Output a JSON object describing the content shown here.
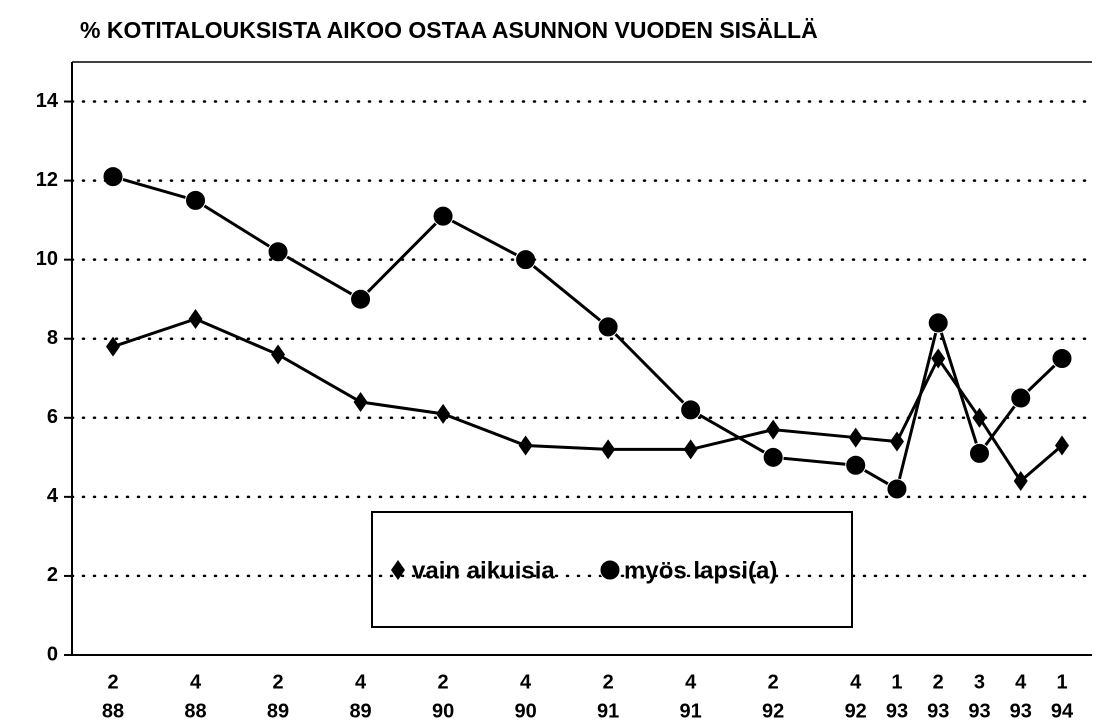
{
  "chart_data": {
    "type": "line",
    "title": "% KOTITALOUKSISTA AIKOO OSTAA ASUNNON VUODEN SISÄLLÄ",
    "categories": [
      [
        "2",
        "88"
      ],
      [
        "4",
        "88"
      ],
      [
        "2",
        "89"
      ],
      [
        "4",
        "89"
      ],
      [
        "2",
        "90"
      ],
      [
        "4",
        "90"
      ],
      [
        "2",
        "91"
      ],
      [
        "4",
        "91"
      ],
      [
        "2",
        "92"
      ],
      [
        "4",
        "92"
      ],
      [
        "1",
        "93"
      ],
      [
        "2",
        "93"
      ],
      [
        "3",
        "93"
      ],
      [
        "4",
        "93"
      ],
      [
        "1",
        "94"
      ]
    ],
    "series": [
      {
        "name": "vain aikuisia",
        "color": "#000000",
        "marker": "diamond",
        "values": [
          7.8,
          8.5,
          7.6,
          6.4,
          6.1,
          5.3,
          5.2,
          5.2,
          5.7,
          5.5,
          5.4,
          7.5,
          6.0,
          4.4,
          5.3
        ]
      },
      {
        "name": "myös lapsi(a)",
        "color": "#000000",
        "marker": "circle",
        "values": [
          12.1,
          11.5,
          10.2,
          9.0,
          11.1,
          10.0,
          8.3,
          6.2,
          5.0,
          4.8,
          4.2,
          8.4,
          5.1,
          6.5,
          7.5
        ]
      }
    ],
    "ylim": [
      0,
      15
    ],
    "yticks": [
      0,
      2,
      4,
      6,
      8,
      10,
      12,
      14
    ],
    "grid": true
  }
}
